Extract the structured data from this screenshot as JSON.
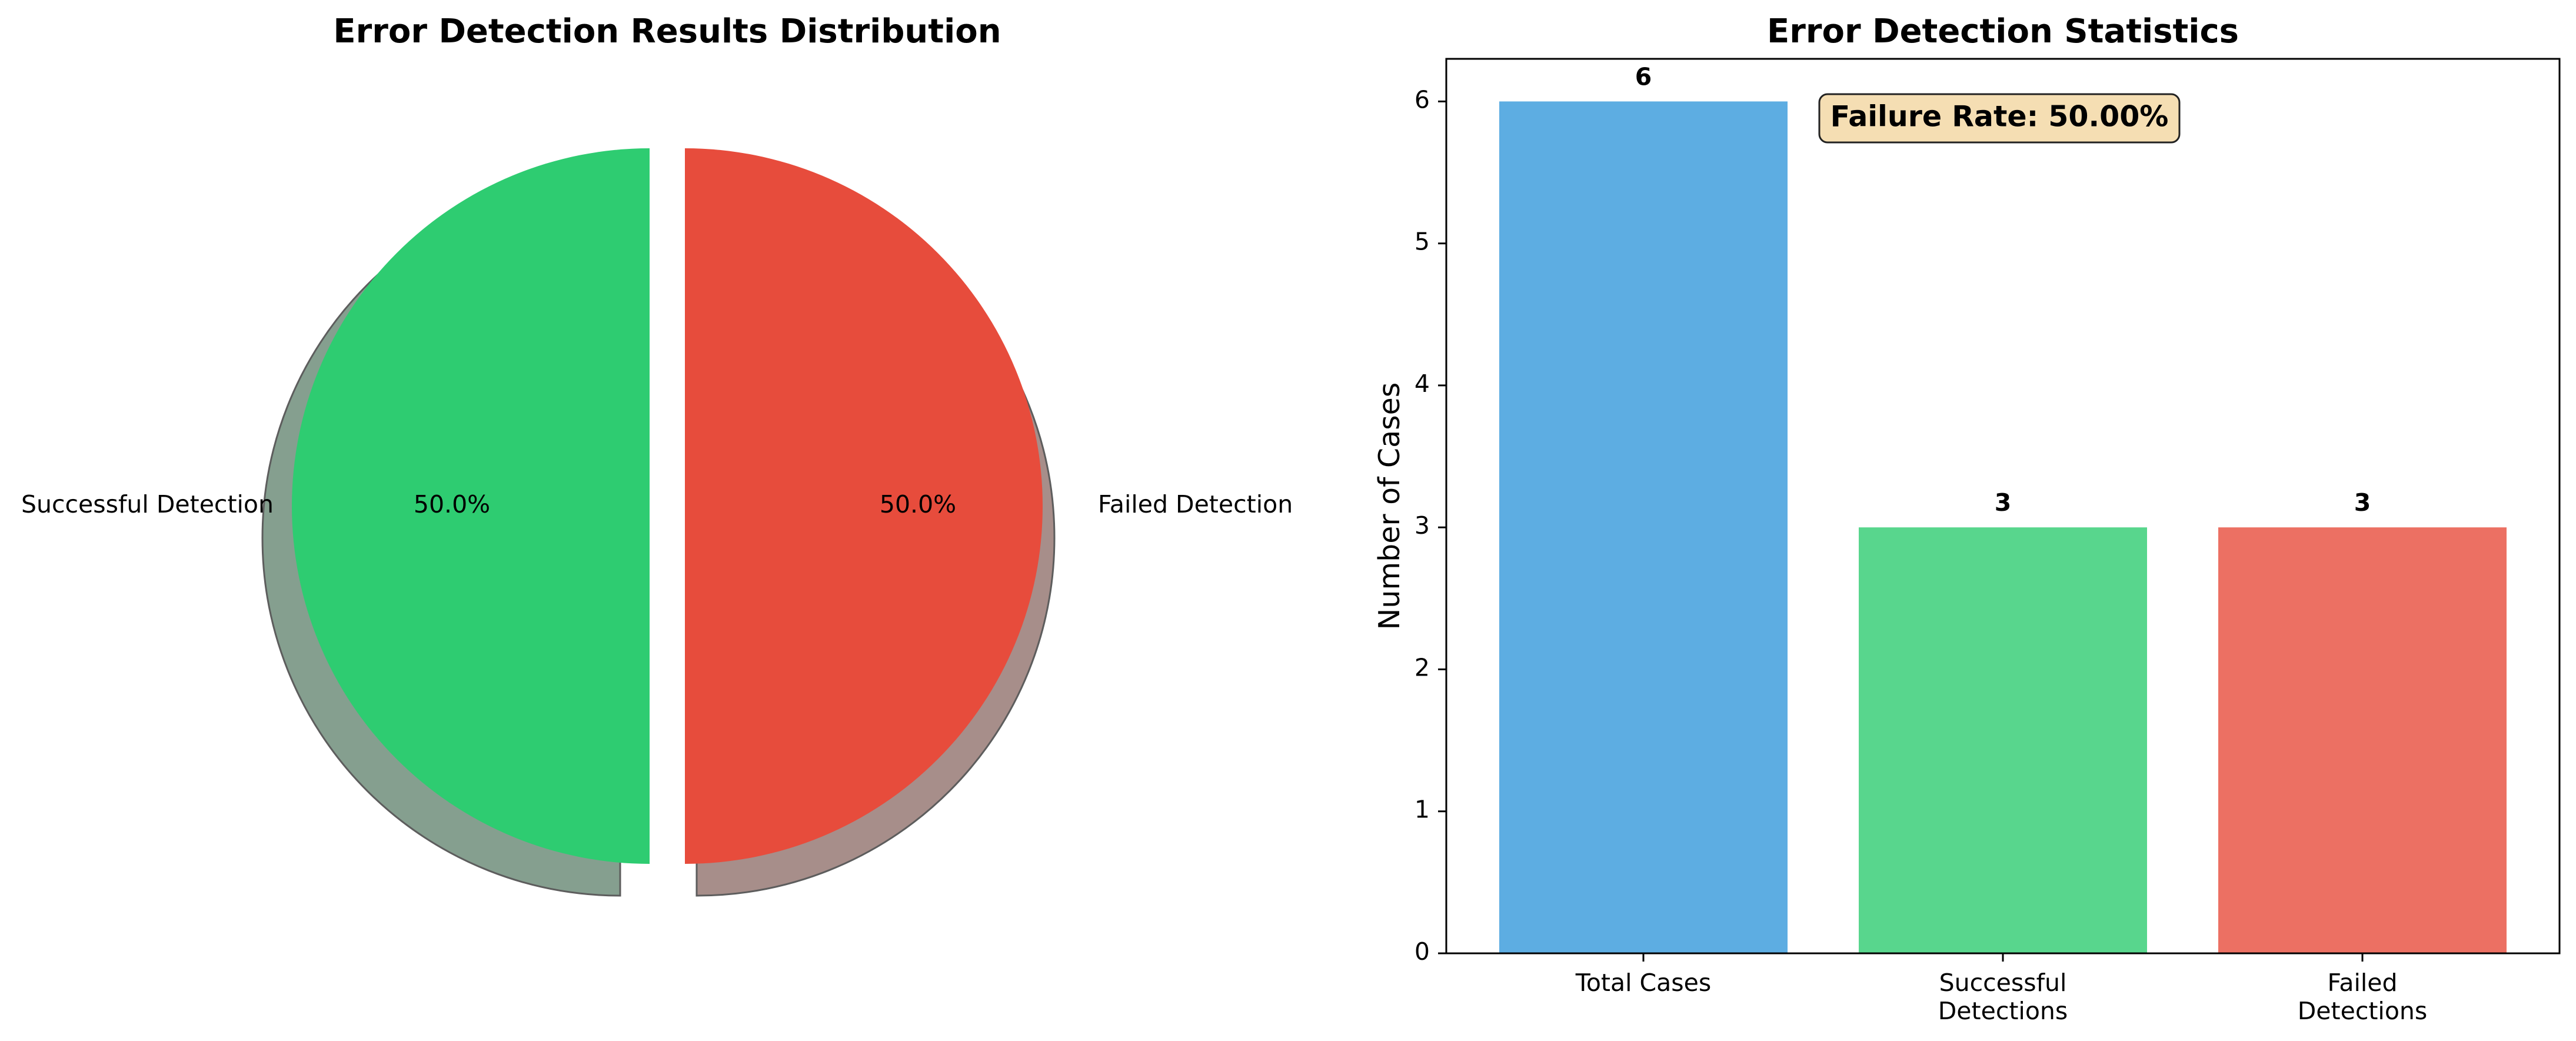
{
  "chart_data": [
    {
      "type": "pie",
      "title": "Error Detection Results Distribution",
      "slices": [
        {
          "label": "Successful Detection",
          "value": 50.0,
          "pct_label": "50.0%",
          "color": "#2ecc71"
        },
        {
          "label": "Failed Detection",
          "value": 50.0,
          "pct_label": "50.0%",
          "color": "#e74c3c"
        }
      ],
      "shadow": true,
      "exploded": true
    },
    {
      "type": "bar",
      "title": "Error Detection Statistics",
      "categories": [
        "Total Cases",
        "Successful\nDetections",
        "Failed\nDetections"
      ],
      "values": [
        6,
        3,
        3
      ],
      "colors": [
        "#5dade2",
        "#58d68d",
        "#ec7063"
      ],
      "ylabel": "Number of Cases",
      "xlabel": "",
      "ylim": [
        0,
        6.3
      ],
      "yticks": [
        0,
        1,
        2,
        3,
        4,
        5,
        6
      ],
      "annotation": "Failure Rate: 50.00%",
      "annotation_bg": "#f5deb3"
    }
  ]
}
